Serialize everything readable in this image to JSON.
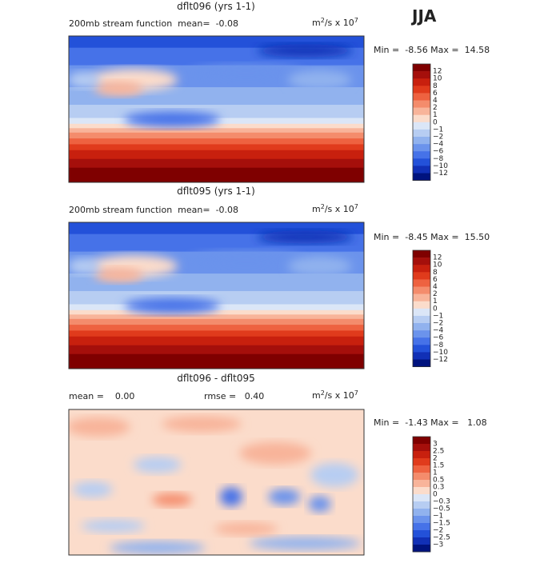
{
  "header": {
    "season": "JJA"
  },
  "colorbar_colors": [
    "#7f0000",
    "#a50f0b",
    "#c8200e",
    "#e03b1c",
    "#ee6240",
    "#f48c6c",
    "#f8b49a",
    "#fbdccb",
    "#dbe6f7",
    "#b7cdf2",
    "#91b2ee",
    "#6b93ec",
    "#4672e8",
    "#2351d9",
    "#1130b6",
    "#00137e"
  ],
  "panels": [
    {
      "title": "dflt096 (yrs 1-1)",
      "annotations": [
        "200mb stream function  mean=  -0.08"
      ],
      "units": {
        "base": "m",
        "exp": "2",
        "mid": "/s x 10",
        "pow": "7"
      },
      "stats": "Min =  -8.56 Max =  14.58",
      "levels": [
        "12",
        "10",
        "8",
        "6",
        "4",
        "2",
        "1",
        "0",
        "−1",
        "−2",
        "−4",
        "−6",
        "−8",
        "−10",
        "−12"
      ]
    },
    {
      "title": "dflt095 (yrs 1-1)",
      "annotations": [
        "200mb stream function  mean=  -0.08"
      ],
      "units": {
        "base": "m",
        "exp": "2",
        "mid": "/s x 10",
        "pow": "7"
      },
      "stats": "Min =  -8.45 Max =  15.50",
      "levels": [
        "12",
        "10",
        "8",
        "6",
        "4",
        "2",
        "1",
        "0",
        "−1",
        "−2",
        "−4",
        "−6",
        "−8",
        "−10",
        "−12"
      ]
    },
    {
      "title": "dflt096 - dflt095",
      "annotations": [
        "mean =    0.00",
        "rmse =   0.40"
      ],
      "units": {
        "base": "m",
        "exp": "2",
        "mid": "/s x 10",
        "pow": "7"
      },
      "stats": "Min =  -1.43 Max =   1.08",
      "levels": [
        "3",
        "2.5",
        "2",
        "1.5",
        "1",
        "0.5",
        "0.3",
        "0",
        "−0.3",
        "−0.5",
        "−1",
        "−1.5",
        "−2",
        "−2.5",
        "−3"
      ]
    }
  ]
}
